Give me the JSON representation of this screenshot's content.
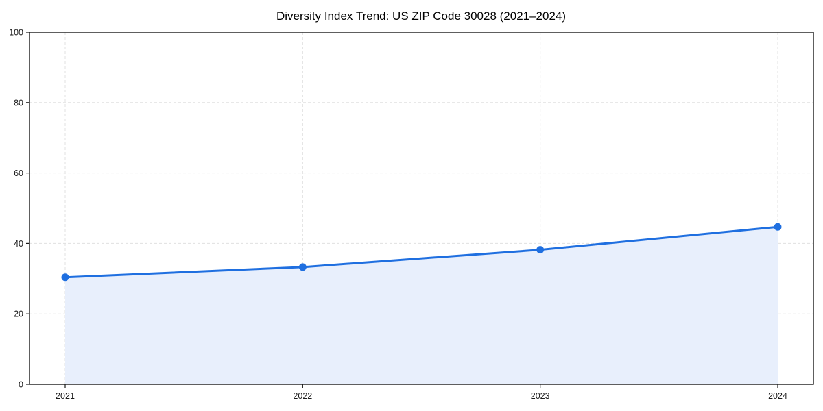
{
  "chart_data": {
    "type": "area",
    "title": "Diversity Index Trend: US ZIP Code 30028 (2021–2024)",
    "categories": [
      "2021",
      "2022",
      "2023",
      "2024"
    ],
    "values": [
      30.4,
      33.3,
      38.2,
      44.7
    ],
    "xlabel": "",
    "ylabel": "",
    "ylim": [
      0,
      100
    ],
    "yticks": [
      0,
      20,
      40,
      60,
      80,
      100
    ],
    "grid": "on",
    "legend": "none",
    "marker": "circle",
    "colors": {
      "line": "#1f6fe0",
      "marker": "#1f6fe0",
      "fill": "#e8effc",
      "gridline": "#e0e0e0",
      "axis": "#1a1a1a",
      "text": "#1a1a1a",
      "background": "#ffffff"
    }
  }
}
